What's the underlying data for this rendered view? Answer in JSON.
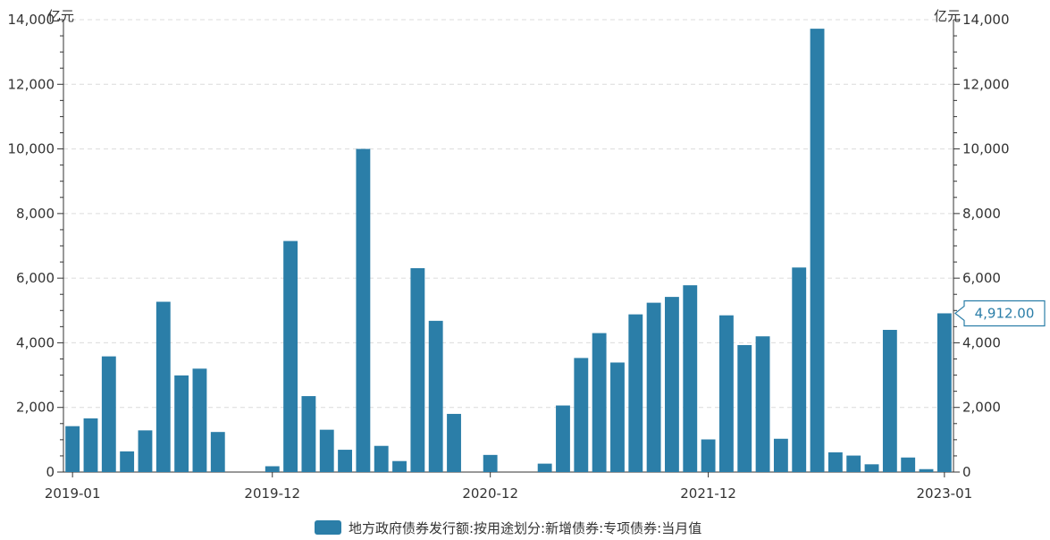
{
  "chart_data": {
    "type": "bar",
    "left_unit": "亿元",
    "right_unit": "亿元",
    "ylim": [
      0,
      14000
    ],
    "y_ticks": [
      0,
      2000,
      4000,
      6000,
      8000,
      10000,
      12000,
      14000
    ],
    "y_tick_labels": [
      "0",
      "2,000",
      "4,000",
      "6,000",
      "8,000",
      "10,000",
      "12,000",
      "14,000"
    ],
    "x_tick_labels": [
      {
        "index": 0,
        "label": "2019-01"
      },
      {
        "index": 11,
        "label": "2019-12"
      },
      {
        "index": 23,
        "label": "2020-12"
      },
      {
        "index": 35,
        "label": "2021-12"
      },
      {
        "index": 48,
        "label": "2023-01"
      }
    ],
    "color": "#2b7ea8",
    "grid": true,
    "legend": {
      "position": "bottom",
      "label": "地方政府债券发行额:按用途划分:新增债券:专项债券:当月值"
    },
    "callout": {
      "index": 48,
      "label": "4,912.00"
    },
    "values": [
      1420,
      1660,
      3580,
      640,
      1290,
      5270,
      2990,
      3200,
      1240,
      0,
      0,
      180,
      7150,
      2350,
      1310,
      690,
      10000,
      810,
      340,
      6310,
      4680,
      1800,
      0,
      530,
      0,
      0,
      260,
      2060,
      3530,
      4300,
      3390,
      4880,
      5240,
      5420,
      5780,
      1010,
      4850,
      3930,
      4200,
      1030,
      6330,
      13720,
      610,
      510,
      240,
      4400,
      450,
      90,
      4912
    ]
  }
}
